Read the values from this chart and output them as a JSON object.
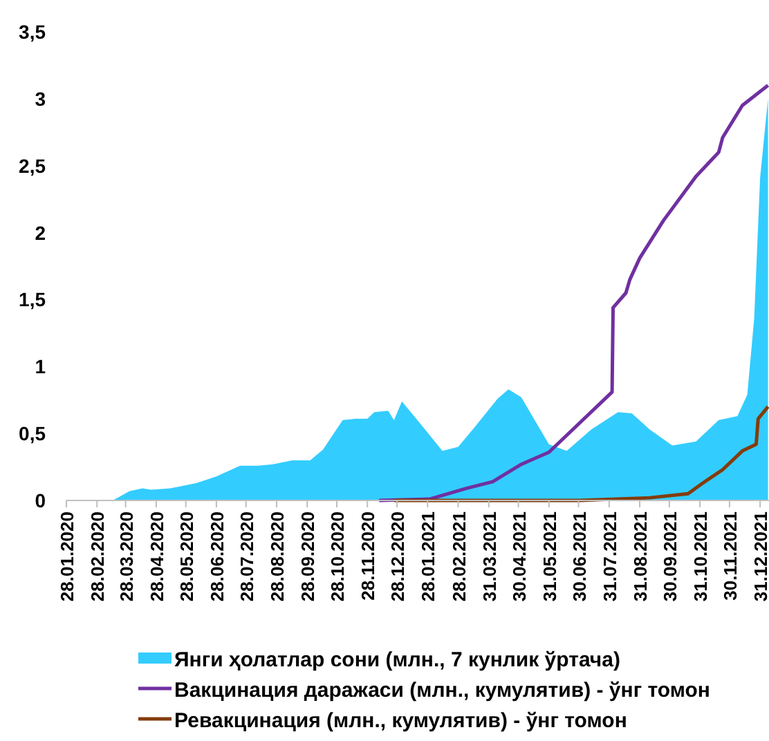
{
  "chart_data": {
    "type": "line",
    "legend": "bottom",
    "grid": false,
    "xlim": [
      "2020-01-28",
      "2022-01-09"
    ],
    "xticks": [
      {
        "value": "2020-01-28",
        "label": "28.01.2020"
      },
      {
        "value": "2020-02-28",
        "label": "28.02.2020"
      },
      {
        "value": "2020-03-28",
        "label": "28.03.2020"
      },
      {
        "value": "2020-04-28",
        "label": "28.04.2020"
      },
      {
        "value": "2020-05-28",
        "label": "28.05.2020"
      },
      {
        "value": "2020-06-28",
        "label": "28.06.2020"
      },
      {
        "value": "2020-07-28",
        "label": "28.07.2020"
      },
      {
        "value": "2020-08-28",
        "label": "28.08.2020"
      },
      {
        "value": "2020-09-28",
        "label": "28.09.2020"
      },
      {
        "value": "2020-10-28",
        "label": "28.10.2020"
      },
      {
        "value": "2020-11-28",
        "label": "28.11.2020"
      },
      {
        "value": "2020-12-28",
        "label": "28.12.2020"
      },
      {
        "value": "2021-01-28",
        "label": "28.01.2021"
      },
      {
        "value": "2021-02-28",
        "label": "28.02.2021"
      },
      {
        "value": "2021-03-31",
        "label": "31.03.2021"
      },
      {
        "value": "2021-04-30",
        "label": "30.04.2021"
      },
      {
        "value": "2021-05-31",
        "label": "31.05.2021"
      },
      {
        "value": "2021-06-30",
        "label": "30.06.2021"
      },
      {
        "value": "2021-07-31",
        "label": "31.07.2021"
      },
      {
        "value": "2021-08-31",
        "label": "31.08.2021"
      },
      {
        "value": "2021-09-30",
        "label": "30.09.2021"
      },
      {
        "value": "2021-10-31",
        "label": "31.10.2021"
      },
      {
        "value": "2021-11-30",
        "label": "30.11.2021"
      },
      {
        "value": "2021-12-31",
        "label": "31.12.2021"
      }
    ],
    "ylim": [
      0,
      3.5
    ],
    "yticks": [
      0,
      {
        "value": 0.5,
        "label": "0,5"
      },
      1,
      {
        "value": 1.5,
        "label": "1,5"
      },
      2,
      {
        "value": 2.5,
        "label": "2,5"
      },
      3,
      {
        "value": 3.5,
        "label": "3,5"
      }
    ],
    "series": [
      {
        "name": "Янги ҳолатлар сони (млн., 7 кунлик ўртача)",
        "type": "area",
        "color": "#33ccff",
        "x": [
          "2020-01-28",
          "2020-03-15",
          "2020-04-01",
          "2020-04-14",
          "2020-04-23",
          "2020-05-12",
          "2020-06-08",
          "2020-06-28",
          "2020-07-22",
          "2020-08-09",
          "2020-08-24",
          "2020-09-13",
          "2020-10-01",
          "2020-10-14",
          "2020-11-03",
          "2020-11-16",
          "2020-11-28",
          "2020-12-05",
          "2020-12-19",
          "2020-12-25",
          "2021-01-02",
          "2021-01-20",
          "2021-02-12",
          "2021-02-28",
          "2021-03-17",
          "2021-04-09",
          "2021-04-20",
          "2021-05-03",
          "2021-05-31",
          "2021-06-18",
          "2021-07-13",
          "2021-08-09",
          "2021-08-23",
          "2021-09-10",
          "2021-10-03",
          "2021-10-27",
          "2021-11-19",
          "2021-12-08",
          "2021-12-18",
          "2021-12-25",
          "2021-12-31",
          "2022-01-08"
        ],
        "values": [
          0,
          0,
          0.07,
          0.09,
          0.08,
          0.09,
          0.13,
          0.18,
          0.26,
          0.26,
          0.27,
          0.3,
          0.3,
          0.38,
          0.6,
          0.61,
          0.61,
          0.66,
          0.67,
          0.6,
          0.74,
          0.58,
          0.37,
          0.4,
          0.55,
          0.76,
          0.83,
          0.77,
          0.42,
          0.37,
          0.53,
          0.66,
          0.65,
          0.53,
          0.41,
          0.44,
          0.6,
          0.63,
          0.79,
          1.36,
          2.41,
          3.0
        ]
      },
      {
        "name": "Вакцинация даражаси (млн., кумулятив) - ўнг томон",
        "color": "#7030a0",
        "x": [
          "2020-12-10",
          "2021-01-30",
          "2021-03-08",
          "2021-04-04",
          "2021-05-03",
          "2021-05-31",
          "2021-06-27",
          "2021-08-03",
          "2021-08-04",
          "2021-08-17",
          "2021-08-21",
          "2021-08-31",
          "2021-09-24",
          "2021-10-27",
          "2021-11-19",
          "2021-11-23",
          "2021-12-13",
          "2022-01-08"
        ],
        "values": [
          0,
          0.01,
          0.09,
          0.14,
          0.27,
          0.36,
          0.55,
          0.81,
          1.44,
          1.55,
          1.65,
          1.81,
          2.09,
          2.42,
          2.6,
          2.71,
          2.95,
          3.1
        ]
      },
      {
        "name": "Ревакцинация (млн., кумулятив) - ўнг томон",
        "color": "#843c0c",
        "x": [
          "2020-12-25",
          "2021-07-01",
          "2021-09-10",
          "2021-10-19",
          "2021-11-01",
          "2021-11-23",
          "2021-12-13",
          "2021-12-27",
          "2021-12-29",
          "2022-01-08"
        ],
        "values": [
          0,
          0,
          0.02,
          0.05,
          0.12,
          0.23,
          0.37,
          0.42,
          0.61,
          0.7
        ]
      }
    ]
  }
}
